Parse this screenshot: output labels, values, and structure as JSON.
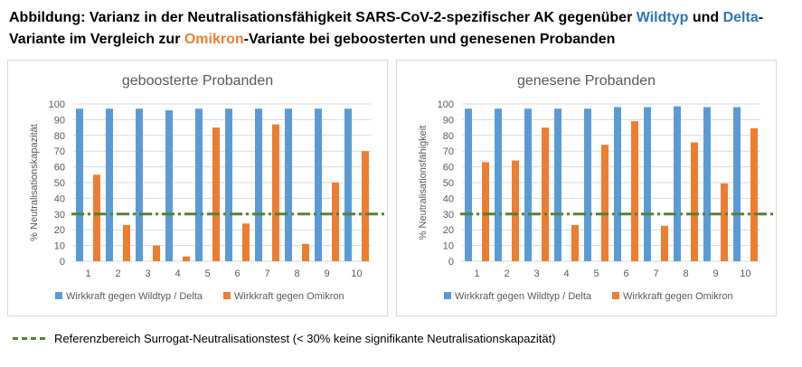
{
  "title": {
    "part1": "Abbildung: Varianz in der Neutralisationsfähigkeit SARS-CoV-2-spezifischer AK gegenüber ",
    "wildtyp": "Wildtyp",
    "part2": " und ",
    "delta": "Delta",
    "part3": "-Variante im Vergleich zur ",
    "omikron": "Omikron",
    "part4": "-Variante bei geboosterten und genesenen Probanden"
  },
  "footer": {
    "label": "Referenzbereich Surrogat-Neutralisationstest (< 30% keine signifikante Neutralisationskapazität)"
  },
  "colors": {
    "wildtyp": "#5b9bd5",
    "omikron": "#ed7d31",
    "reference": "#548235",
    "grid": "#d9d9d9",
    "axis_text": "#595959"
  },
  "chart_data": [
    {
      "type": "bar",
      "title": "geboosterte Probanden",
      "xlabel": "",
      "ylabel": "% Neutralisationskapazität",
      "ylim": [
        0,
        100
      ],
      "yticks": [
        0,
        10,
        20,
        30,
        40,
        50,
        60,
        70,
        80,
        90,
        100
      ],
      "categories": [
        "1",
        "2",
        "3",
        "4",
        "5",
        "6",
        "7",
        "8",
        "9",
        "10"
      ],
      "series": [
        {
          "name": "Wirkkraft gegen Wildtyp / Delta",
          "values": [
            97,
            97,
            97,
            96,
            97,
            97,
            97,
            97,
            97,
            97
          ]
        },
        {
          "name": "Wirkkraft gegen Omikron",
          "values": [
            55,
            23,
            10,
            3,
            85,
            24,
            87,
            11,
            50,
            70
          ]
        }
      ],
      "reference_line": 30,
      "legend": "bottom"
    },
    {
      "type": "bar",
      "title": "genesene Probanden",
      "xlabel": "",
      "ylabel": "% Neutralisationsfähigkeit",
      "ylim": [
        0,
        100
      ],
      "yticks": [
        0,
        10,
        20,
        30,
        40,
        50,
        60,
        70,
        80,
        90,
        100
      ],
      "categories": [
        "1",
        "2",
        "3",
        "4",
        "5",
        "6",
        "7",
        "8",
        "9",
        "10"
      ],
      "series": [
        {
          "name": "Wirkkraft gegen Wildtyp / Delta",
          "values": [
            97,
            97,
            97,
            97,
            97,
            98,
            98,
            98.5,
            98,
            98
          ]
        },
        {
          "name": "Wirkkraft gegen Omikron",
          "values": [
            63,
            64,
            85,
            23,
            74,
            89,
            22.5,
            75.5,
            49.5,
            84.5
          ]
        }
      ],
      "reference_line": 30,
      "legend": "bottom"
    }
  ]
}
